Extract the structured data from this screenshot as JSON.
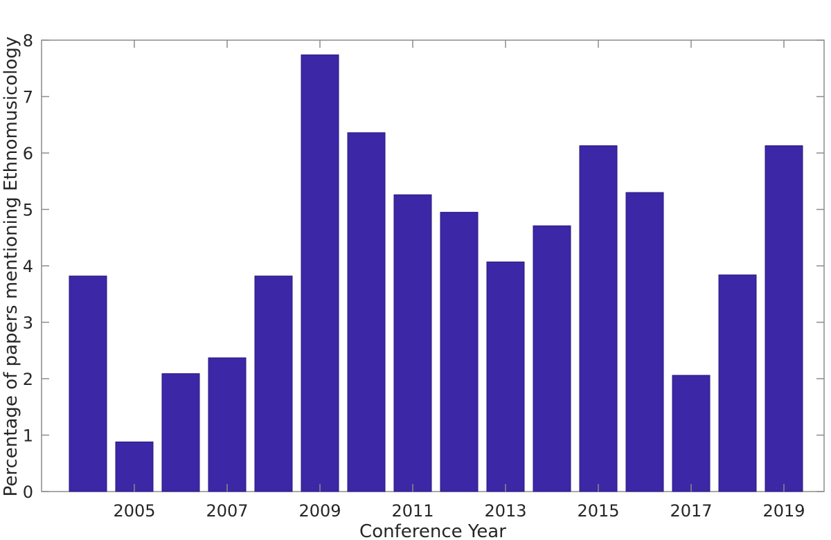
{
  "chart_data": {
    "type": "bar",
    "title": "",
    "xlabel": "Conference Year",
    "ylabel": "Percentage of papers mentioning Ethnomusicology",
    "categories": [
      2004,
      2005,
      2006,
      2007,
      2008,
      2009,
      2010,
      2011,
      2012,
      2013,
      2014,
      2015,
      2016,
      2017,
      2018,
      2019
    ],
    "values": [
      3.82,
      0.88,
      2.09,
      2.37,
      3.82,
      7.74,
      6.36,
      5.26,
      4.95,
      4.07,
      4.71,
      6.13,
      5.3,
      2.06,
      3.84,
      6.13
    ],
    "ylim": [
      0,
      8
    ],
    "yticks": [
      0,
      1,
      2,
      3,
      4,
      5,
      6,
      7,
      8
    ],
    "xticks": [
      2005,
      2007,
      2009,
      2011,
      2013,
      2015,
      2017,
      2019
    ],
    "grid": false,
    "legend": null,
    "bar_color": "#3c27a6",
    "bar_edge_color": "#2a1a80",
    "axis_color": "#8c8c8c"
  }
}
